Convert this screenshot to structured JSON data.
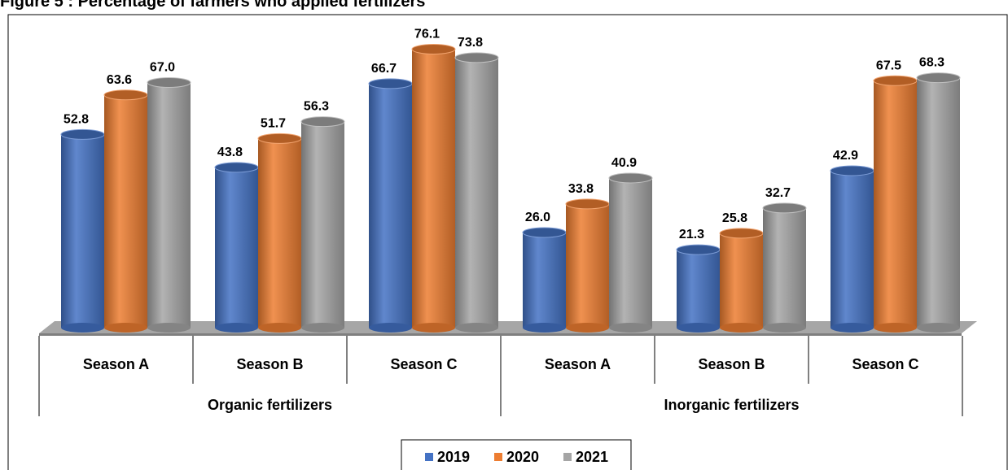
{
  "chart_data": {
    "type": "bar",
    "title": "Figure 5 : Percentage of farmers who applied fertilizers",
    "categories": [
      "Season A",
      "Season B",
      "Season C",
      "Season A",
      "Season B",
      "Season C"
    ],
    "group_labels": [
      "Organic fertilizers",
      "Inorganic fertilizers"
    ],
    "series": [
      {
        "name": "2019",
        "color": "#4472c4",
        "values": [
          52.8,
          43.8,
          66.7,
          26.0,
          21.3,
          42.9
        ],
        "value_labels": [
          "52.8",
          "43.8",
          "66.7",
          "26.0",
          "21.3",
          "42.9"
        ]
      },
      {
        "name": "2020",
        "color": "#ed7d31",
        "values": [
          63.6,
          51.7,
          76.1,
          33.8,
          25.8,
          67.5
        ],
        "value_labels": [
          "63.6",
          "51.7",
          "76.1",
          "33.8",
          "25.8",
          "67.5"
        ]
      },
      {
        "name": "2021",
        "color": "#a5a5a5",
        "values": [
          67.0,
          56.3,
          73.8,
          40.9,
          32.7,
          68.3
        ],
        "value_labels": [
          "67.0",
          "56.3",
          "73.8",
          "40.9",
          "32.7",
          "68.3"
        ]
      }
    ],
    "legend": "bottom"
  }
}
